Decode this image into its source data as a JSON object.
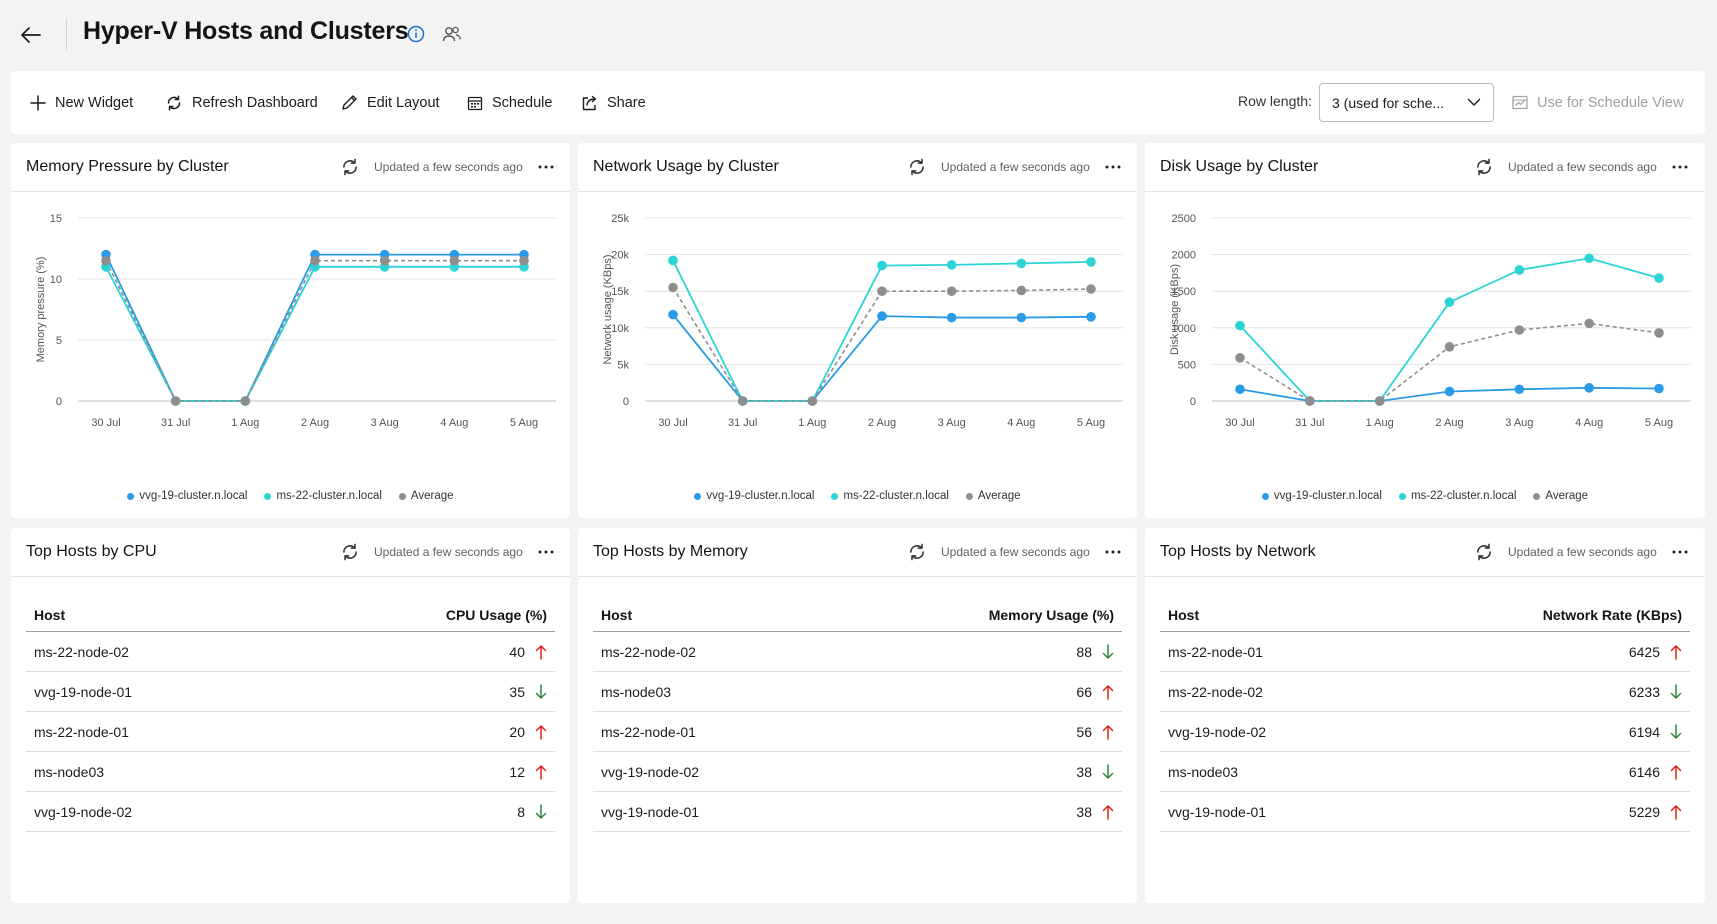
{
  "header": {
    "title": "Hyper-V Hosts and Clusters"
  },
  "toolbar": {
    "new_widget": "New Widget",
    "refresh_dashboard": "Refresh Dashboard",
    "edit_layout": "Edit Layout",
    "schedule": "Schedule",
    "share": "Share",
    "row_length_label": "Row length:",
    "row_length_value": "3 (used for sche...",
    "use_schedule_view": "Use for Schedule View"
  },
  "colors": {
    "series1": "#2b9be8",
    "series2": "#2dd4d6",
    "average": "#8e8e8e",
    "up_arrow": "#e2231a",
    "down_arrow": "#2e8b3e"
  },
  "legend": {
    "s1": "vvg-19-cluster.n.local",
    "s2": "ms-22-cluster.n.local",
    "avg": "Average"
  },
  "charts": {
    "memory": {
      "title": "Memory Pressure by Cluster",
      "updated": "Updated a few seconds ago"
    },
    "network": {
      "title": "Network Usage by Cluster",
      "updated": "Updated a few seconds ago"
    },
    "disk": {
      "title": "Disk Usage by Cluster",
      "updated": "Updated a few seconds ago"
    }
  },
  "chart_data": [
    {
      "type": "line",
      "title": "Memory Pressure by Cluster",
      "ylabel": "Memory pressure (%)",
      "ylim": [
        0,
        15
      ],
      "yticks": [
        "0",
        "5",
        "10",
        "15"
      ],
      "yticks_values": [
        0,
        5,
        10,
        15
      ],
      "categories": [
        "30 Jul",
        "31 Jul",
        "1 Aug",
        "2 Aug",
        "3 Aug",
        "4 Aug",
        "5 Aug"
      ],
      "series": [
        {
          "name": "vvg-19-cluster.n.local",
          "values": [
            12,
            0,
            0,
            12,
            12,
            12,
            12
          ]
        },
        {
          "name": "ms-22-cluster.n.local",
          "values": [
            11,
            0,
            0,
            11,
            11,
            11,
            11
          ]
        },
        {
          "name": "Average",
          "values": [
            11.5,
            0,
            0,
            11.5,
            11.5,
            11.5,
            11.5
          ]
        }
      ]
    },
    {
      "type": "line",
      "title": "Network Usage by Cluster",
      "ylabel": "Network usage (KBps)",
      "ylim": [
        0,
        25000
      ],
      "yticks": [
        "0",
        "5k",
        "10k",
        "15k",
        "20k",
        "25k"
      ],
      "yticks_values": [
        0,
        5000,
        10000,
        15000,
        20000,
        25000
      ],
      "categories": [
        "30 Jul",
        "31 Jul",
        "1 Aug",
        "2 Aug",
        "3 Aug",
        "4 Aug",
        "5 Aug"
      ],
      "series": [
        {
          "name": "vvg-19-cluster.n.local",
          "values": [
            11800,
            0,
            0,
            11600,
            11400,
            11400,
            11500
          ]
        },
        {
          "name": "ms-22-cluster.n.local",
          "values": [
            19200,
            0,
            0,
            18500,
            18600,
            18800,
            19000
          ]
        },
        {
          "name": "Average",
          "values": [
            15500,
            0,
            0,
            15000,
            15000,
            15100,
            15300
          ]
        }
      ]
    },
    {
      "type": "line",
      "title": "Disk Usage by Cluster",
      "ylabel": "Disk usage (KBps)",
      "ylim": [
        0,
        2500
      ],
      "yticks": [
        "0",
        "500",
        "1000",
        "1500",
        "2000",
        "2500"
      ],
      "yticks_values": [
        0,
        500,
        1000,
        1500,
        2000,
        2500
      ],
      "categories": [
        "30 Jul",
        "31 Jul",
        "1 Aug",
        "2 Aug",
        "3 Aug",
        "4 Aug",
        "5 Aug"
      ],
      "series": [
        {
          "name": "vvg-19-cluster.n.local",
          "values": [
            160,
            0,
            0,
            130,
            160,
            180,
            170
          ]
        },
        {
          "name": "ms-22-cluster.n.local",
          "values": [
            1030,
            0,
            0,
            1350,
            1790,
            1950,
            1680
          ]
        },
        {
          "name": "Average",
          "values": [
            590,
            0,
            0,
            740,
            970,
            1060,
            930
          ]
        }
      ]
    }
  ],
  "tables": {
    "cpu": {
      "title": "Top Hosts by CPU",
      "updated": "Updated a few seconds ago",
      "col_host": "Host",
      "col_value": "CPU Usage (%)",
      "rows": [
        {
          "host": "ms-22-node-02",
          "value": "40",
          "trend": "up"
        },
        {
          "host": "vvg-19-node-01",
          "value": "35",
          "trend": "down"
        },
        {
          "host": "ms-22-node-01",
          "value": "20",
          "trend": "up"
        },
        {
          "host": "ms-node03",
          "value": "12",
          "trend": "up"
        },
        {
          "host": "vvg-19-node-02",
          "value": "8",
          "trend": "down"
        }
      ]
    },
    "memory": {
      "title": "Top Hosts by Memory",
      "updated": "Updated a few seconds ago",
      "col_host": "Host",
      "col_value": "Memory Usage (%)",
      "rows": [
        {
          "host": "ms-22-node-02",
          "value": "88",
          "trend": "down"
        },
        {
          "host": "ms-node03",
          "value": "66",
          "trend": "up"
        },
        {
          "host": "ms-22-node-01",
          "value": "56",
          "trend": "up"
        },
        {
          "host": "vvg-19-node-02",
          "value": "38",
          "trend": "down"
        },
        {
          "host": "vvg-19-node-01",
          "value": "38",
          "trend": "up"
        }
      ]
    },
    "network": {
      "title": "Top Hosts by Network",
      "updated": "Updated a few seconds ago",
      "col_host": "Host",
      "col_value": "Network Rate (KBps)",
      "rows": [
        {
          "host": "ms-22-node-01",
          "value": "6425",
          "trend": "up"
        },
        {
          "host": "ms-22-node-02",
          "value": "6233",
          "trend": "down"
        },
        {
          "host": "vvg-19-node-02",
          "value": "6194",
          "trend": "down"
        },
        {
          "host": "ms-node03",
          "value": "6146",
          "trend": "up"
        },
        {
          "host": "vvg-19-node-01",
          "value": "5229",
          "trend": "up"
        }
      ]
    }
  }
}
